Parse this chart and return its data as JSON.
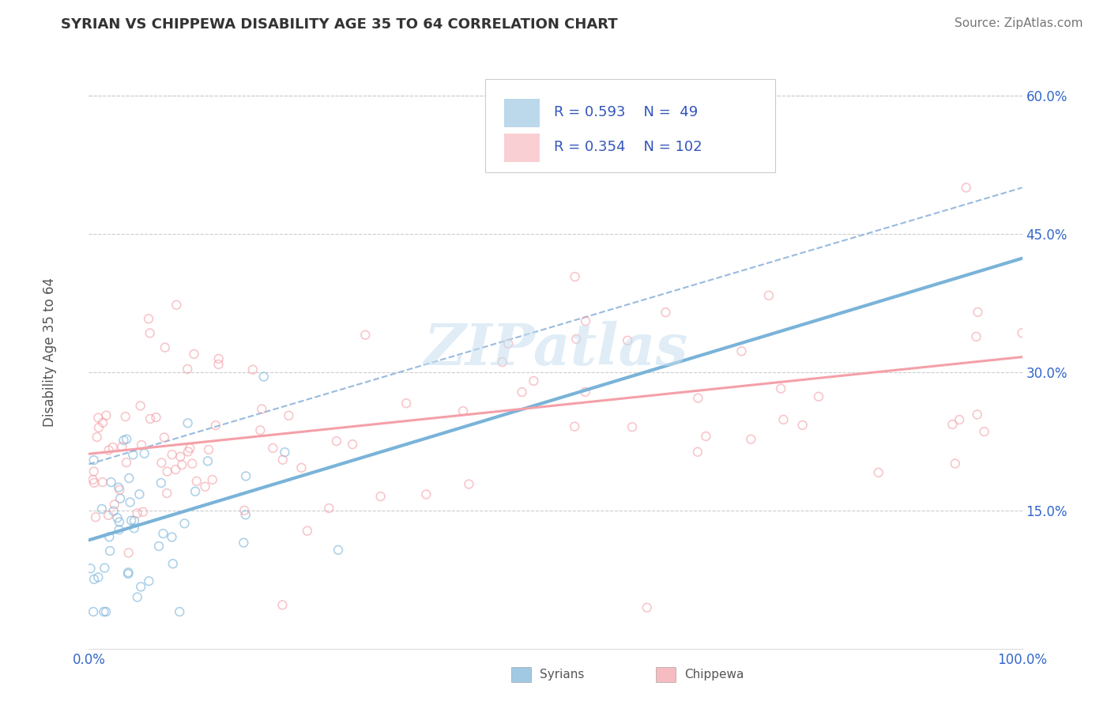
{
  "title": "SYRIAN VS CHIPPEWA DISABILITY AGE 35 TO 64 CORRELATION CHART",
  "source_text": "Source: ZipAtlas.com",
  "ylabel": "Disability Age 35 to 64",
  "xlim": [
    0.0,
    1.0
  ],
  "ylim": [
    0.0,
    0.65
  ],
  "xtick_positions": [
    0.0,
    1.0
  ],
  "xtick_labels": [
    "0.0%",
    "100.0%"
  ],
  "ytick_values": [
    0.15,
    0.3,
    0.45,
    0.6
  ],
  "ytick_labels": [
    "15.0%",
    "30.0%",
    "45.0%",
    "60.0%"
  ],
  "grid_color": "#cccccc",
  "background_color": "#ffffff",
  "syrian_color": "#7ab3d9",
  "chippewa_color": "#f4a0a8",
  "tick_label_color": "#3366cc",
  "axis_label_color": "#555555",
  "syrian_R": 0.593,
  "syrian_N": 49,
  "chippewa_R": 0.354,
  "chippewa_N": 102,
  "legend_text_color": "#3355bb",
  "watermark_text": "ZIPatlas",
  "watermark_color": "#c8dff0",
  "dot_size": 60,
  "dot_alpha": 0.6,
  "dot_linewidth": 1.2,
  "line_linewidth": 2.2,
  "dashed_line_color": "#99bbdd",
  "dashed_line_style": "--"
}
